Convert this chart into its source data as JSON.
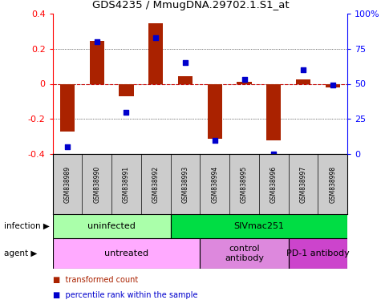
{
  "title": "GDS4235 / MmugDNA.29702.1.S1_at",
  "samples": [
    "GSM838989",
    "GSM838990",
    "GSM838991",
    "GSM838992",
    "GSM838993",
    "GSM838994",
    "GSM838995",
    "GSM838996",
    "GSM838997",
    "GSM838998"
  ],
  "transformed_counts": [
    -0.27,
    0.245,
    -0.07,
    0.345,
    0.045,
    -0.315,
    0.01,
    -0.32,
    0.025,
    -0.02
  ],
  "percentile_ranks": [
    5,
    80,
    30,
    83,
    65,
    10,
    53,
    0,
    60,
    49
  ],
  "ylim_left": [
    -0.4,
    0.4
  ],
  "ylim_right": [
    0,
    100
  ],
  "yticks_left": [
    -0.4,
    -0.2,
    0.0,
    0.2,
    0.4
  ],
  "yticks_right": [
    0,
    25,
    50,
    75,
    100
  ],
  "ytick_labels_right": [
    "0",
    "25",
    "50",
    "75",
    "100%"
  ],
  "bar_color": "#aa2200",
  "dot_color": "#0000cc",
  "zero_line_color": "#cc0000",
  "grid_color": "#000000",
  "infection_groups": [
    {
      "label": "uninfected",
      "start": 0,
      "end": 4,
      "color": "#aaffaa"
    },
    {
      "label": "SIVmac251",
      "start": 4,
      "end": 10,
      "color": "#00dd44"
    }
  ],
  "agent_groups": [
    {
      "label": "untreated",
      "start": 0,
      "end": 5,
      "color": "#ffaaff"
    },
    {
      "label": "control\nantibody",
      "start": 5,
      "end": 8,
      "color": "#dd88dd"
    },
    {
      "label": "PD-1 antibody",
      "start": 8,
      "end": 10,
      "color": "#cc44cc"
    }
  ],
  "legend_items": [
    {
      "label": "transformed count",
      "color": "#aa2200"
    },
    {
      "label": "percentile rank within the sample",
      "color": "#0000cc"
    }
  ],
  "infection_label": "infection",
  "agent_label": "agent",
  "bg_color": "#ffffff",
  "sample_bg_color": "#cccccc"
}
